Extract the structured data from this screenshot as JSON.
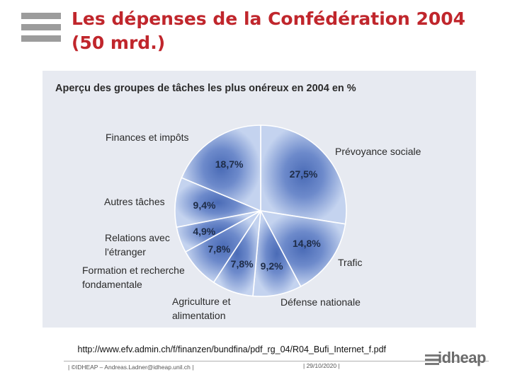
{
  "slide": {
    "title_line1": "Les dépenses de la Confédération 2004",
    "title_line2": "(50 mrd.)"
  },
  "chart_data": {
    "type": "pie",
    "title": "Aperçu des groupes de tâches les plus onéreux en 2004 en %",
    "unit": "%",
    "slices": [
      {
        "label": "Prévoyance sociale",
        "value": 27.5,
        "display": "27,5%"
      },
      {
        "label": "Trafic",
        "value": 14.8,
        "display": "14,8%"
      },
      {
        "label": "Défense nationale",
        "value": 9.2,
        "display": "9,2%"
      },
      {
        "label": "Agriculture et\nalimentation",
        "value": 7.8,
        "display": "7,8%"
      },
      {
        "label": "Formation et recherche\nfondamentale",
        "value": 7.8,
        "display": "7,8%"
      },
      {
        "label": "Relations avec\nl'étranger",
        "value": 4.9,
        "display": "4,9%"
      },
      {
        "label": "Autres tâches",
        "value": 9.4,
        "display": "9,4%"
      },
      {
        "label": "Finances et impôts",
        "value": 18.7,
        "display": "18,7%"
      }
    ]
  },
  "source_url": "http://www.efv.admin.ch/f/finanzen/bundfina/pdf_rg_04/R04_Bufi_Internet_f.pdf",
  "footer": {
    "left": "| ©IDHEAP – Andreas.Ladner@idheap.unil.ch |",
    "date": "| 29/10/2020 |",
    "brand": "idheap"
  },
  "colors": {
    "title": "#c0262c",
    "pie_light": "#b8c9ea",
    "pie_dark": "#4a6bb6",
    "chart_bg": "#e7eaf1"
  }
}
